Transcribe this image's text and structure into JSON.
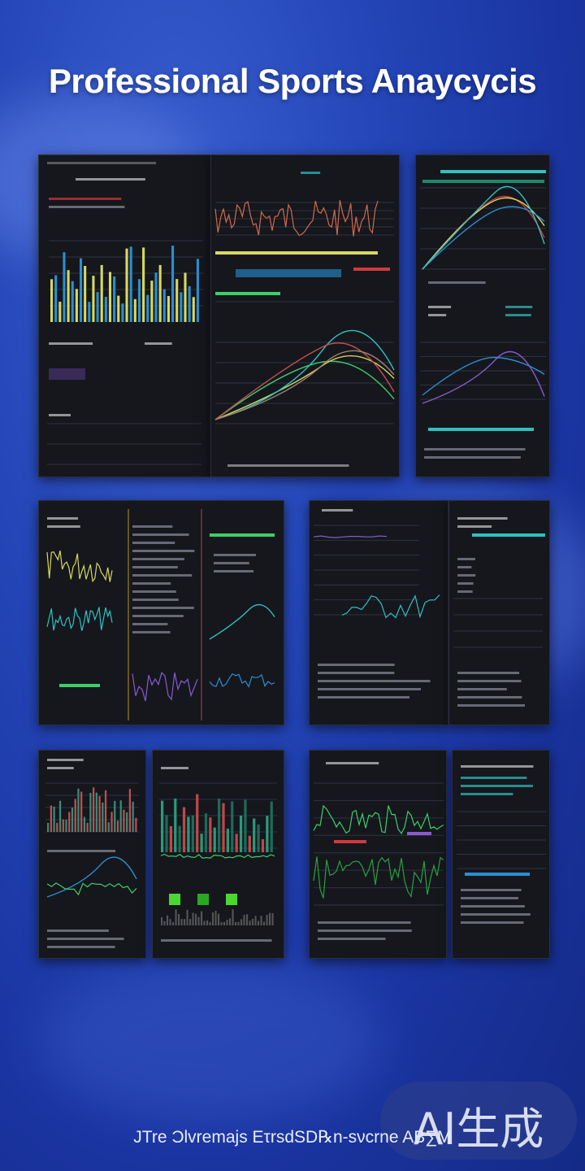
{
  "title": "Professional Sports Anayсycis",
  "footer_text": "JTre Ͻlvremajs EτrsdSD℞n-sνcrne AB∑M",
  "badge": "AI生成",
  "colors": {
    "background": "#2446b8",
    "panel": "#15171d",
    "yellow": "#d8d860",
    "blue": "#2a8fd0",
    "green": "#3ccf6a",
    "red": "#d03a3a",
    "cyan": "#30c0c0",
    "purple": "#8a5ad0"
  }
}
